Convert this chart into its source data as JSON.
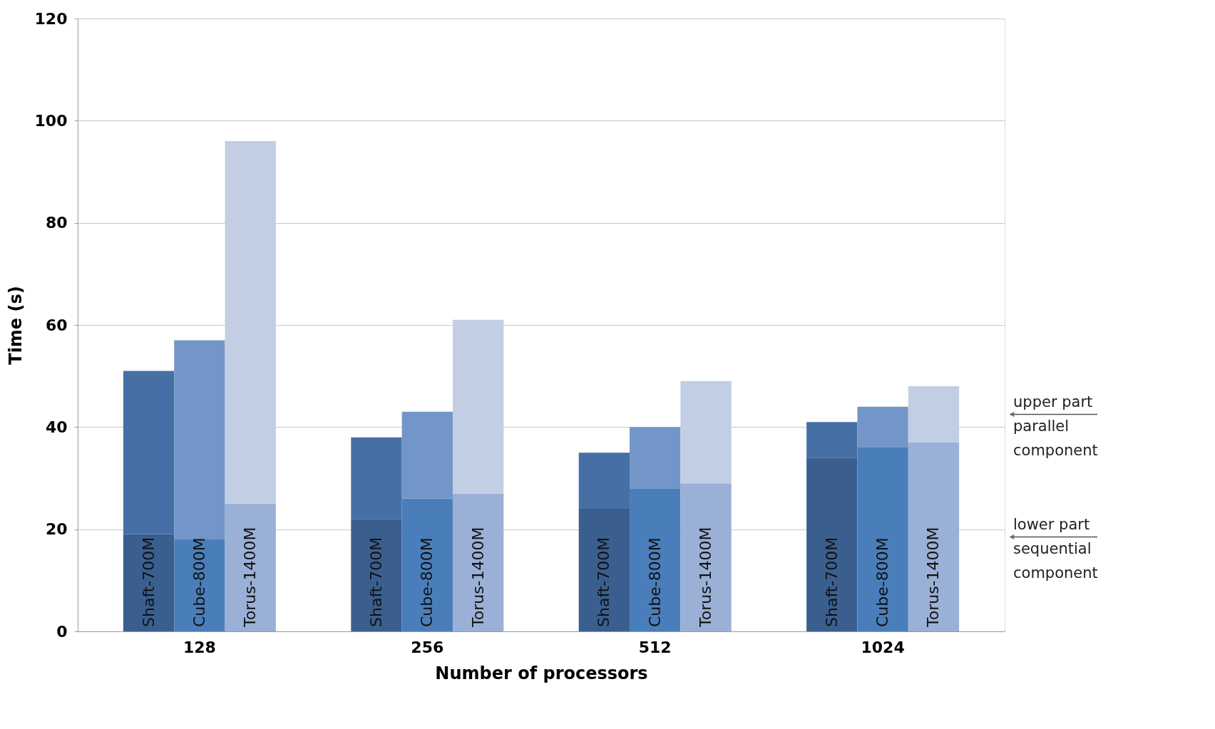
{
  "chart_data": {
    "type": "bar",
    "xlabel": "Number of processors",
    "ylabel": "Time (s)",
    "categories": [
      "Shaft-700M",
      "Cube-800M",
      "Torus-1400M",
      "Shaft-700M",
      "Cube-800M",
      "Torus-1400M",
      "Shaft-700M",
      "Cube-800M",
      "Torus-1400M",
      "Shaft-700M",
      "Cube-800M",
      "Torus-1400M"
    ],
    "series": [
      {
        "name": "lower part\nsequential\ncomponent",
        "colors": [
          "#3a5f8f",
          "#4a7ebb",
          "#9ab0d6",
          "#3a5f8f",
          "#4a7ebb",
          "#9ab0d6",
          "#3a5f8f",
          "#4a7ebb",
          "#9ab0d6",
          "#3a5f8f",
          "#4a7ebb",
          "#9ab0d6"
        ],
        "values": [
          19,
          18,
          25,
          22,
          26,
          27,
          24,
          28,
          29,
          34,
          36,
          37
        ]
      },
      {
        "name": "upper part\nparallel\ncomponent",
        "colors": [
          "#4670a5",
          "#7396c8",
          "#c2cee4",
          "#4670a5",
          "#7396c8",
          "#c2cee4",
          "#4670a5",
          "#7396c8",
          "#c2cee4",
          "#4670a5",
          "#7396c8",
          "#c2cee4"
        ],
        "values": [
          32,
          39,
          71,
          16,
          17,
          34,
          11,
          12,
          20,
          7,
          8,
          11
        ]
      }
    ],
    "stacked": true,
    "ylim": [
      0,
      120
    ],
    "yticks": [
      0,
      20,
      40,
      60,
      80,
      100,
      120
    ],
    "grid": "y",
    "legend": "right",
    "annotations": [
      "128",
      "256",
      "512",
      "1024"
    ]
  }
}
